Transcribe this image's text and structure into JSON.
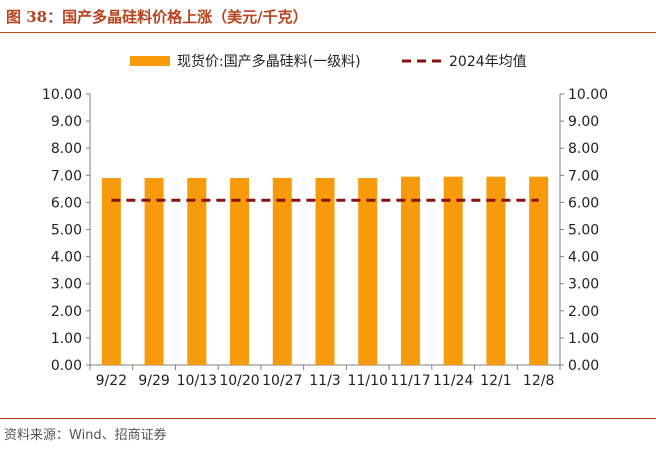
{
  "figure": {
    "title": "图 38：国产多晶硅料价格上涨（美元/千克）",
    "source": "资料来源：Wind、招商证券"
  },
  "colors": {
    "bar": "#f79a0c",
    "dashed_line": "#8b1010",
    "title": "#b8431f",
    "axis": "#7f7f7f",
    "text": "#222222"
  },
  "chart_data": {
    "type": "bar",
    "categories": [
      "9/22",
      "9/29",
      "10/13",
      "10/20",
      "10/27",
      "11/3",
      "11/10",
      "11/17",
      "11/24",
      "12/1",
      "12/8"
    ],
    "series": [
      {
        "name": "现货价:国产多晶硅料(一级料)",
        "type": "bar",
        "values": [
          6.9,
          6.9,
          6.9,
          6.9,
          6.9,
          6.9,
          6.9,
          6.95,
          6.95,
          6.95,
          6.95
        ]
      },
      {
        "name": "2024年均值",
        "type": "line",
        "style": "dashed",
        "values": [
          6.08,
          6.08,
          6.08,
          6.08,
          6.08,
          6.08,
          6.08,
          6.08,
          6.08,
          6.08,
          6.08
        ]
      }
    ],
    "ylim": [
      0,
      10
    ],
    "yticks": [
      "0.00",
      "1.00",
      "2.00",
      "3.00",
      "4.00",
      "5.00",
      "6.00",
      "7.00",
      "8.00",
      "9.00",
      "10.00"
    ],
    "y2ticks": [
      "0.00",
      "1.00",
      "2.00",
      "3.00",
      "4.00",
      "5.00",
      "6.00",
      "7.00",
      "8.00",
      "9.00",
      "10.00"
    ],
    "grid": false,
    "legend_position": "top"
  }
}
